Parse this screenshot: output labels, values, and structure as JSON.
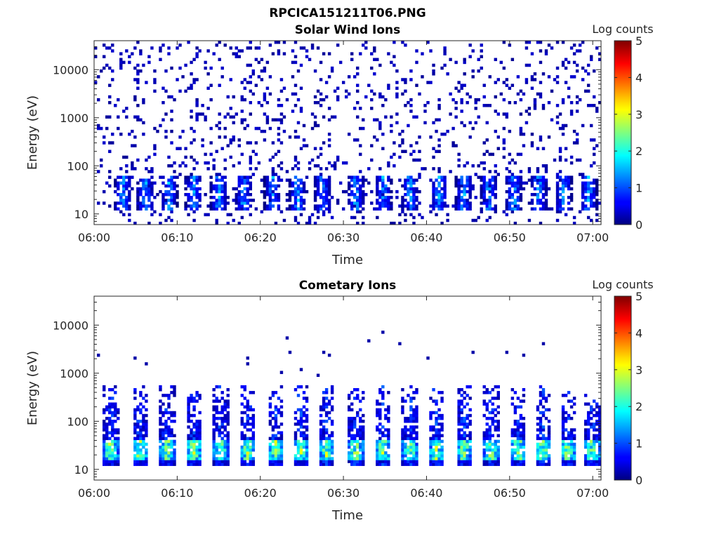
{
  "figure": {
    "title": "RPCICA151211T06.PNG"
  },
  "chart_data": [
    {
      "type": "heatmap",
      "title": "Solar Wind Ions",
      "xlabel": "Time",
      "ylabel": "Energy (eV)",
      "x_ticks": [
        "06:00",
        "06:10",
        "06:20",
        "06:30",
        "06:40",
        "06:50",
        "07:00"
      ],
      "x_range": [
        "06:00",
        "07:01"
      ],
      "y_scale": "log",
      "y_ticks": [
        "10",
        "100",
        "1000",
        "10000"
      ],
      "y_range": [
        6,
        40000
      ],
      "colorbar": {
        "label": "Log counts",
        "range": [
          0,
          5
        ],
        "ticks": [
          "0",
          "1",
          "2",
          "3",
          "4",
          "5"
        ],
        "colormap": "jet"
      },
      "pattern": {
        "background_noise_density": 0.1,
        "noise_level_logcounts": 0.1,
        "burst_times_min": [
          3.5,
          6.2,
          9.0,
          12.0,
          15.0,
          18.0,
          21.5,
          24.5,
          27.5,
          31.5,
          34.8,
          38.0,
          41.5,
          44.5,
          47.5,
          50.5,
          53.5,
          56.5,
          59.5
        ],
        "burst_energy_band_eV": [
          12,
          60
        ],
        "burst_peak_logcounts": 1.8
      }
    },
    {
      "type": "heatmap",
      "title": "Cometary Ions",
      "xlabel": "Time",
      "ylabel": "Energy (eV)",
      "x_ticks": [
        "06:00",
        "06:10",
        "06:20",
        "06:30",
        "06:40",
        "06:50",
        "07:00"
      ],
      "x_range": [
        "06:00",
        "07:01"
      ],
      "y_scale": "log",
      "y_ticks": [
        "10",
        "100",
        "1000",
        "10000"
      ],
      "y_range": [
        6,
        40000
      ],
      "colorbar": {
        "label": "Log counts",
        "range": [
          0,
          5
        ],
        "ticks": [
          "0",
          "1",
          "2",
          "3",
          "4",
          "5"
        ],
        "colormap": "jet"
      },
      "pattern": {
        "burst_times_min": [
          2.0,
          5.5,
          8.8,
          12.0,
          15.2,
          18.5,
          21.8,
          24.8,
          28.0,
          31.5,
          34.8,
          38.0,
          41.2,
          44.5,
          47.8,
          51.0,
          54.0,
          57.0,
          60.0
        ],
        "burst_energy_band_eV": [
          12,
          600
        ],
        "core_energy_eV": [
          15,
          40
        ],
        "core_peak_logcounts": 3.3,
        "sparse_high_energy_max_eV": 8000
      }
    }
  ]
}
